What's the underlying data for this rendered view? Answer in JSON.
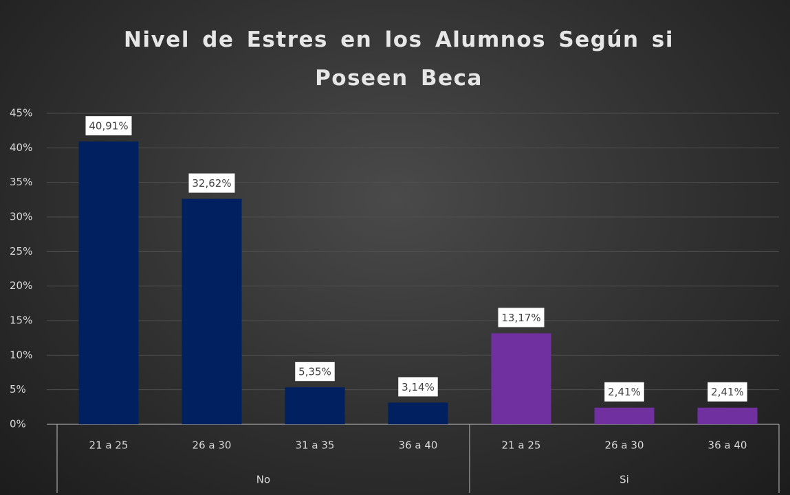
{
  "chart_data": {
    "type": "bar",
    "title": "Nivel de Estres en los Alumnos Según si Poseen Beca",
    "categories": [
      "21 a 25",
      "26 a 30",
      "31 a 35",
      "36 a 40",
      "21 a 25",
      "26 a 30",
      "36 a 40"
    ],
    "series": [
      {
        "name": "No",
        "color": "#002060",
        "values": [
          40.91,
          32.62,
          5.35,
          3.14,
          null,
          null,
          null
        ],
        "value_labels": [
          "40,91%",
          "32,62%",
          "5,35%",
          "3,14%",
          null,
          null,
          null
        ]
      },
      {
        "name": "Si",
        "color": "#7030a0",
        "values": [
          null,
          null,
          null,
          null,
          13.17,
          2.41,
          2.41
        ],
        "value_labels": [
          null,
          null,
          null,
          null,
          "13,17%",
          "2,41%",
          "2,41%"
        ]
      }
    ],
    "ylim": [
      0,
      45
    ],
    "yticks": [
      {
        "value": 0,
        "label": "0%"
      },
      {
        "value": 5,
        "label": "5%"
      },
      {
        "value": 10,
        "label": "10%"
      },
      {
        "value": 15,
        "label": "15%"
      },
      {
        "value": 20,
        "label": "20%"
      },
      {
        "value": 25,
        "label": "25%"
      },
      {
        "value": 30,
        "label": "30%"
      },
      {
        "value": 35,
        "label": "35%"
      },
      {
        "value": 40,
        "label": "40%"
      },
      {
        "value": 45,
        "label": "45%"
      }
    ],
    "grid": true
  }
}
